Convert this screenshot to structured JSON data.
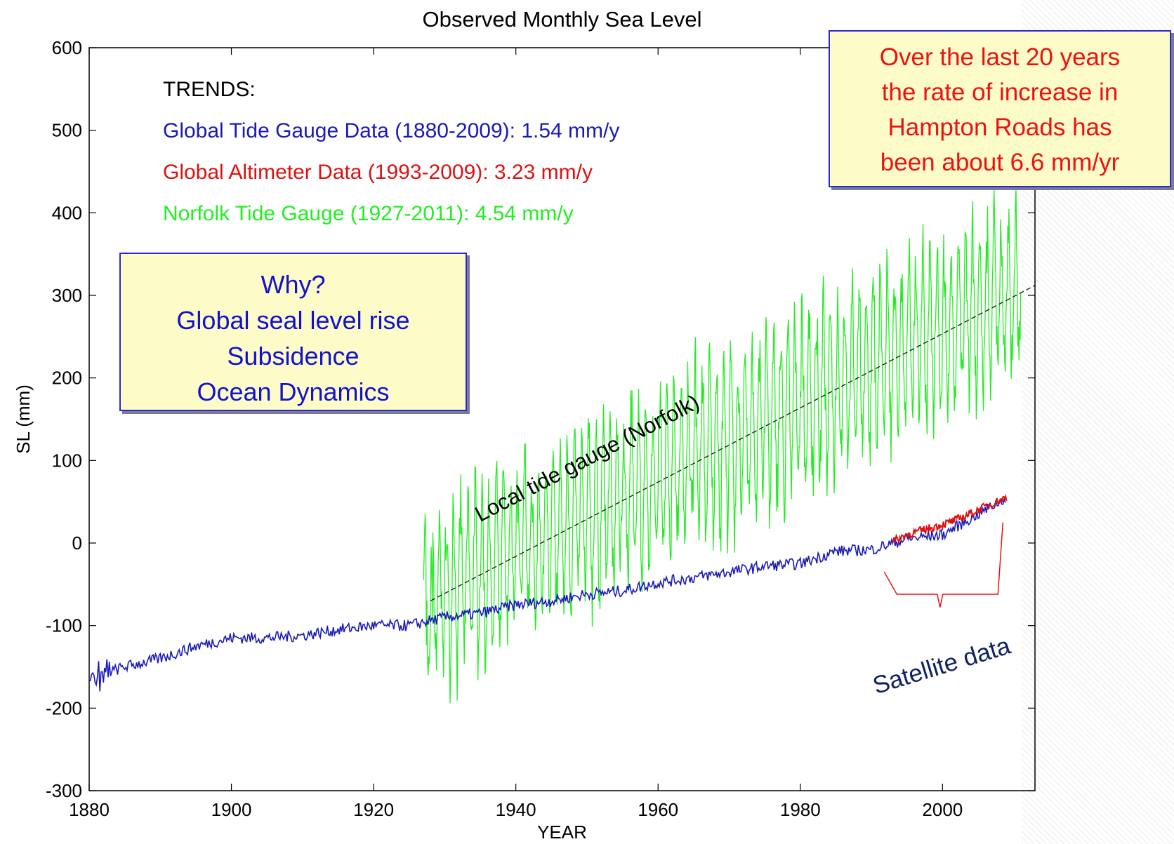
{
  "chart_data": {
    "type": "line",
    "title": "Observed Monthly Sea Level",
    "xlabel": "YEAR",
    "ylabel": "SL (mm)",
    "xlim": [
      1880,
      2013
    ],
    "ylim": [
      -300,
      600
    ],
    "xticks": [
      1880,
      1900,
      1920,
      1940,
      1960,
      1980,
      2000
    ],
    "yticks": [
      -300,
      -200,
      -100,
      0,
      100,
      200,
      300,
      400,
      500,
      600
    ],
    "colors": {
      "global_tide": "#1a1ab8",
      "altimeter": "#dd1111",
      "norfolk": "#22ee22",
      "trend": "#222222"
    },
    "series": [
      {
        "name": "Global Tide Gauge Data (1880-2009)",
        "color": "#1a1ab8",
        "x": [
          1880,
          1885,
          1890,
          1895,
          1900,
          1905,
          1910,
          1915,
          1920,
          1925,
          1930,
          1935,
          1940,
          1945,
          1950,
          1955,
          1960,
          1965,
          1970,
          1975,
          1980,
          1985,
          1990,
          1995,
          2000,
          2005,
          2009
        ],
        "y": [
          -165,
          -150,
          -140,
          -125,
          -115,
          -115,
          -112,
          -105,
          -100,
          -100,
          -90,
          -85,
          -75,
          -70,
          -62,
          -58,
          -48,
          -42,
          -35,
          -28,
          -25,
          -10,
          -8,
          5,
          10,
          35,
          55
        ]
      },
      {
        "name": "Global Altimeter Data (1993-2009)",
        "color": "#dd1111",
        "x": [
          1993,
          1995,
          1997,
          1999,
          2001,
          2003,
          2005,
          2007,
          2009
        ],
        "y": [
          2,
          10,
          15,
          20,
          25,
          32,
          40,
          48,
          55
        ]
      },
      {
        "name": "Norfolk Tide Gauge (1927-2011)",
        "color": "#22ee22",
        "x_start": 1927,
        "x_end": 2011,
        "trend_rate_mm_per_year": 4.54,
        "trend_at_start": -70,
        "seasonal_amplitude": 90
      }
    ],
    "trend_line": {
      "x": [
        1928,
        2013
      ],
      "y": [
        -70,
        312
      ]
    },
    "trends_heading": "TRENDS:",
    "trends": [
      {
        "text": "Global Tide Gauge Data (1880-2009): 1.54 mm/y",
        "color": "#1a1ab8"
      },
      {
        "text": "Global Altimeter Data (1993-2009): 3.23 mm/y",
        "color": "#dd1111"
      },
      {
        "text": "Norfolk Tide Gauge (1927-2011): 4.54 mm/y",
        "color": "#22ee22"
      }
    ],
    "annotations": {
      "local_label": "Local tide gauge (Norfolk)",
      "satellite_label": "Satellite data"
    }
  },
  "why_box": [
    "Why?",
    "Global seal level rise",
    "Subsidence",
    "Ocean Dynamics"
  ],
  "rate_box": [
    "Over the last 20 years",
    "the rate of increase in",
    "Hampton Roads has",
    "been about 6.6 mm/yr"
  ]
}
